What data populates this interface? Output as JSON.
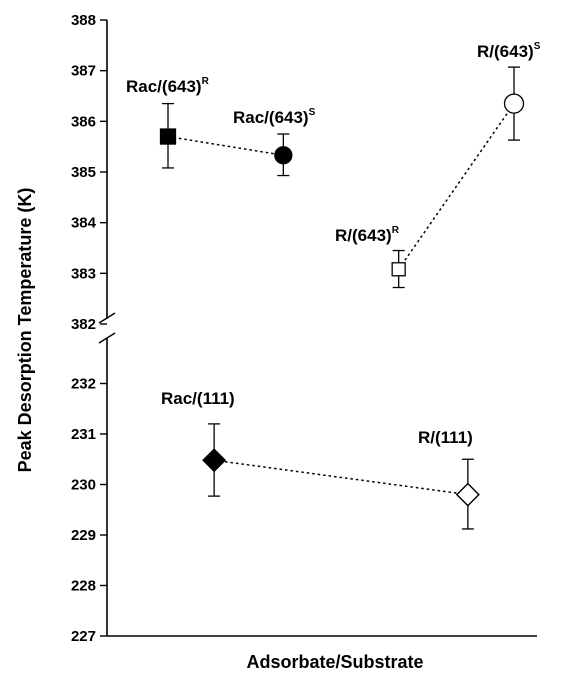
{
  "chart_data": {
    "type": "scatter",
    "title": "",
    "xlabel": "Adsorbate/Substrate",
    "ylabel": "Peak Desorption Temperature (K)",
    "broken_y_axis": true,
    "ylim_upper": [
      382,
      388
    ],
    "ylim_lower": [
      227,
      233
    ],
    "yticks_upper": [
      "382",
      "383",
      "384",
      "385",
      "386",
      "387",
      "388"
    ],
    "yticks_lower": [
      "227",
      "228",
      "229",
      "230",
      "231",
      "232"
    ],
    "x_ticks": "none",
    "grid": false,
    "points": [
      {
        "id": "rac-643r",
        "base": "Rac/(643)",
        "sup": "R",
        "x": 1,
        "y": 385.7,
        "err_low": 385.08,
        "err_high": 386.35,
        "marker": "square",
        "filled": true
      },
      {
        "id": "rac-643s",
        "base": "Rac/(643)",
        "sup": "S",
        "x": 2,
        "y": 385.33,
        "err_low": 384.93,
        "err_high": 385.75,
        "marker": "circle",
        "filled": true
      },
      {
        "id": "r-643r",
        "base": "R/(643)",
        "sup": "R",
        "x": 3,
        "y": 383.08,
        "err_low": 382.72,
        "err_high": 383.45,
        "marker": "square",
        "filled": false
      },
      {
        "id": "r-643s",
        "base": "R/(643)",
        "sup": "S",
        "x": 4,
        "y": 386.35,
        "err_low": 385.63,
        "err_high": 387.07,
        "marker": "circle",
        "filled": false
      },
      {
        "id": "rac-111",
        "base": "Rac/(111)",
        "sup": "",
        "x": 1.4,
        "y": 230.48,
        "err_low": 229.77,
        "err_high": 231.2,
        "marker": "diamond",
        "filled": true
      },
      {
        "id": "r-111",
        "base": "R/(111)",
        "sup": "",
        "x": 3.6,
        "y": 229.8,
        "err_low": 229.12,
        "err_high": 230.5,
        "marker": "diamond",
        "filled": false
      }
    ],
    "connectors": [
      {
        "from": "rac-643r",
        "to": "rac-643s",
        "style": "dotted"
      },
      {
        "from": "r-643r",
        "to": "r-643s",
        "style": "dotted"
      },
      {
        "from": "rac-111",
        "to": "r-111",
        "style": "dotted"
      }
    ]
  }
}
